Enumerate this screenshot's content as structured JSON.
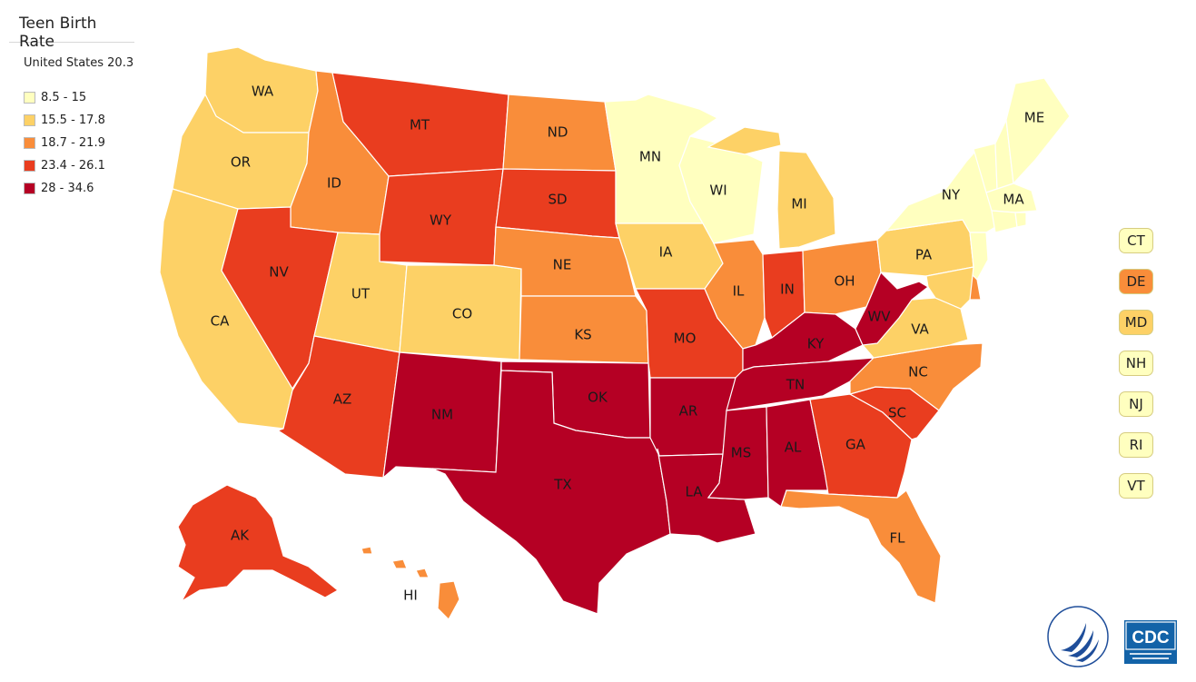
{
  "title": "Teen Birth Rate",
  "legend": {
    "title": "United States 20.3",
    "bins": [
      {
        "label": "8.5 - 15",
        "color": "#ffffbf"
      },
      {
        "label": "15.5 - 17.8",
        "color": "#fdd166"
      },
      {
        "label": "18.7 - 21.9",
        "color": "#f98d3a"
      },
      {
        "label": "23.4 - 26.1",
        "color": "#e93d1f"
      },
      {
        "label": "28 - 34.6",
        "color": "#b50024"
      }
    ]
  },
  "states": [
    {
      "abbr": "WA",
      "bin": 1
    },
    {
      "abbr": "OR",
      "bin": 1
    },
    {
      "abbr": "CA",
      "bin": 1
    },
    {
      "abbr": "ID",
      "bin": 2
    },
    {
      "abbr": "NV",
      "bin": 3
    },
    {
      "abbr": "MT",
      "bin": 3
    },
    {
      "abbr": "WY",
      "bin": 3
    },
    {
      "abbr": "UT",
      "bin": 1
    },
    {
      "abbr": "AZ",
      "bin": 3
    },
    {
      "abbr": "CO",
      "bin": 1
    },
    {
      "abbr": "NM",
      "bin": 4
    },
    {
      "abbr": "ND",
      "bin": 2
    },
    {
      "abbr": "SD",
      "bin": 3
    },
    {
      "abbr": "NE",
      "bin": 2
    },
    {
      "abbr": "KS",
      "bin": 2
    },
    {
      "abbr": "OK",
      "bin": 4
    },
    {
      "abbr": "TX",
      "bin": 4
    },
    {
      "abbr": "MN",
      "bin": 0
    },
    {
      "abbr": "IA",
      "bin": 1
    },
    {
      "abbr": "MO",
      "bin": 3
    },
    {
      "abbr": "AR",
      "bin": 4
    },
    {
      "abbr": "LA",
      "bin": 4
    },
    {
      "abbr": "WI",
      "bin": 0
    },
    {
      "abbr": "IL",
      "bin": 2
    },
    {
      "abbr": "MI",
      "bin": 1
    },
    {
      "abbr": "IN",
      "bin": 3
    },
    {
      "abbr": "OH",
      "bin": 2
    },
    {
      "abbr": "KY",
      "bin": 4
    },
    {
      "abbr": "TN",
      "bin": 4
    },
    {
      "abbr": "MS",
      "bin": 4
    },
    {
      "abbr": "AL",
      "bin": 4
    },
    {
      "abbr": "GA",
      "bin": 3
    },
    {
      "abbr": "FL",
      "bin": 2
    },
    {
      "abbr": "SC",
      "bin": 3
    },
    {
      "abbr": "NC",
      "bin": 2
    },
    {
      "abbr": "VA",
      "bin": 1
    },
    {
      "abbr": "WV",
      "bin": 4
    },
    {
      "abbr": "PA",
      "bin": 1
    },
    {
      "abbr": "NY",
      "bin": 0
    },
    {
      "abbr": "ME",
      "bin": 0
    },
    {
      "abbr": "MA",
      "bin": 0
    },
    {
      "abbr": "AK",
      "bin": 3
    },
    {
      "abbr": "HI",
      "bin": 2
    }
  ],
  "small_states": [
    {
      "abbr": "CT",
      "bin": 0
    },
    {
      "abbr": "DE",
      "bin": 2
    },
    {
      "abbr": "MD",
      "bin": 1
    },
    {
      "abbr": "NH",
      "bin": 0
    },
    {
      "abbr": "NJ",
      "bin": 0
    },
    {
      "abbr": "RI",
      "bin": 0
    },
    {
      "abbr": "VT",
      "bin": 0
    }
  ],
  "logos": {
    "cdc_text": "CDC"
  }
}
